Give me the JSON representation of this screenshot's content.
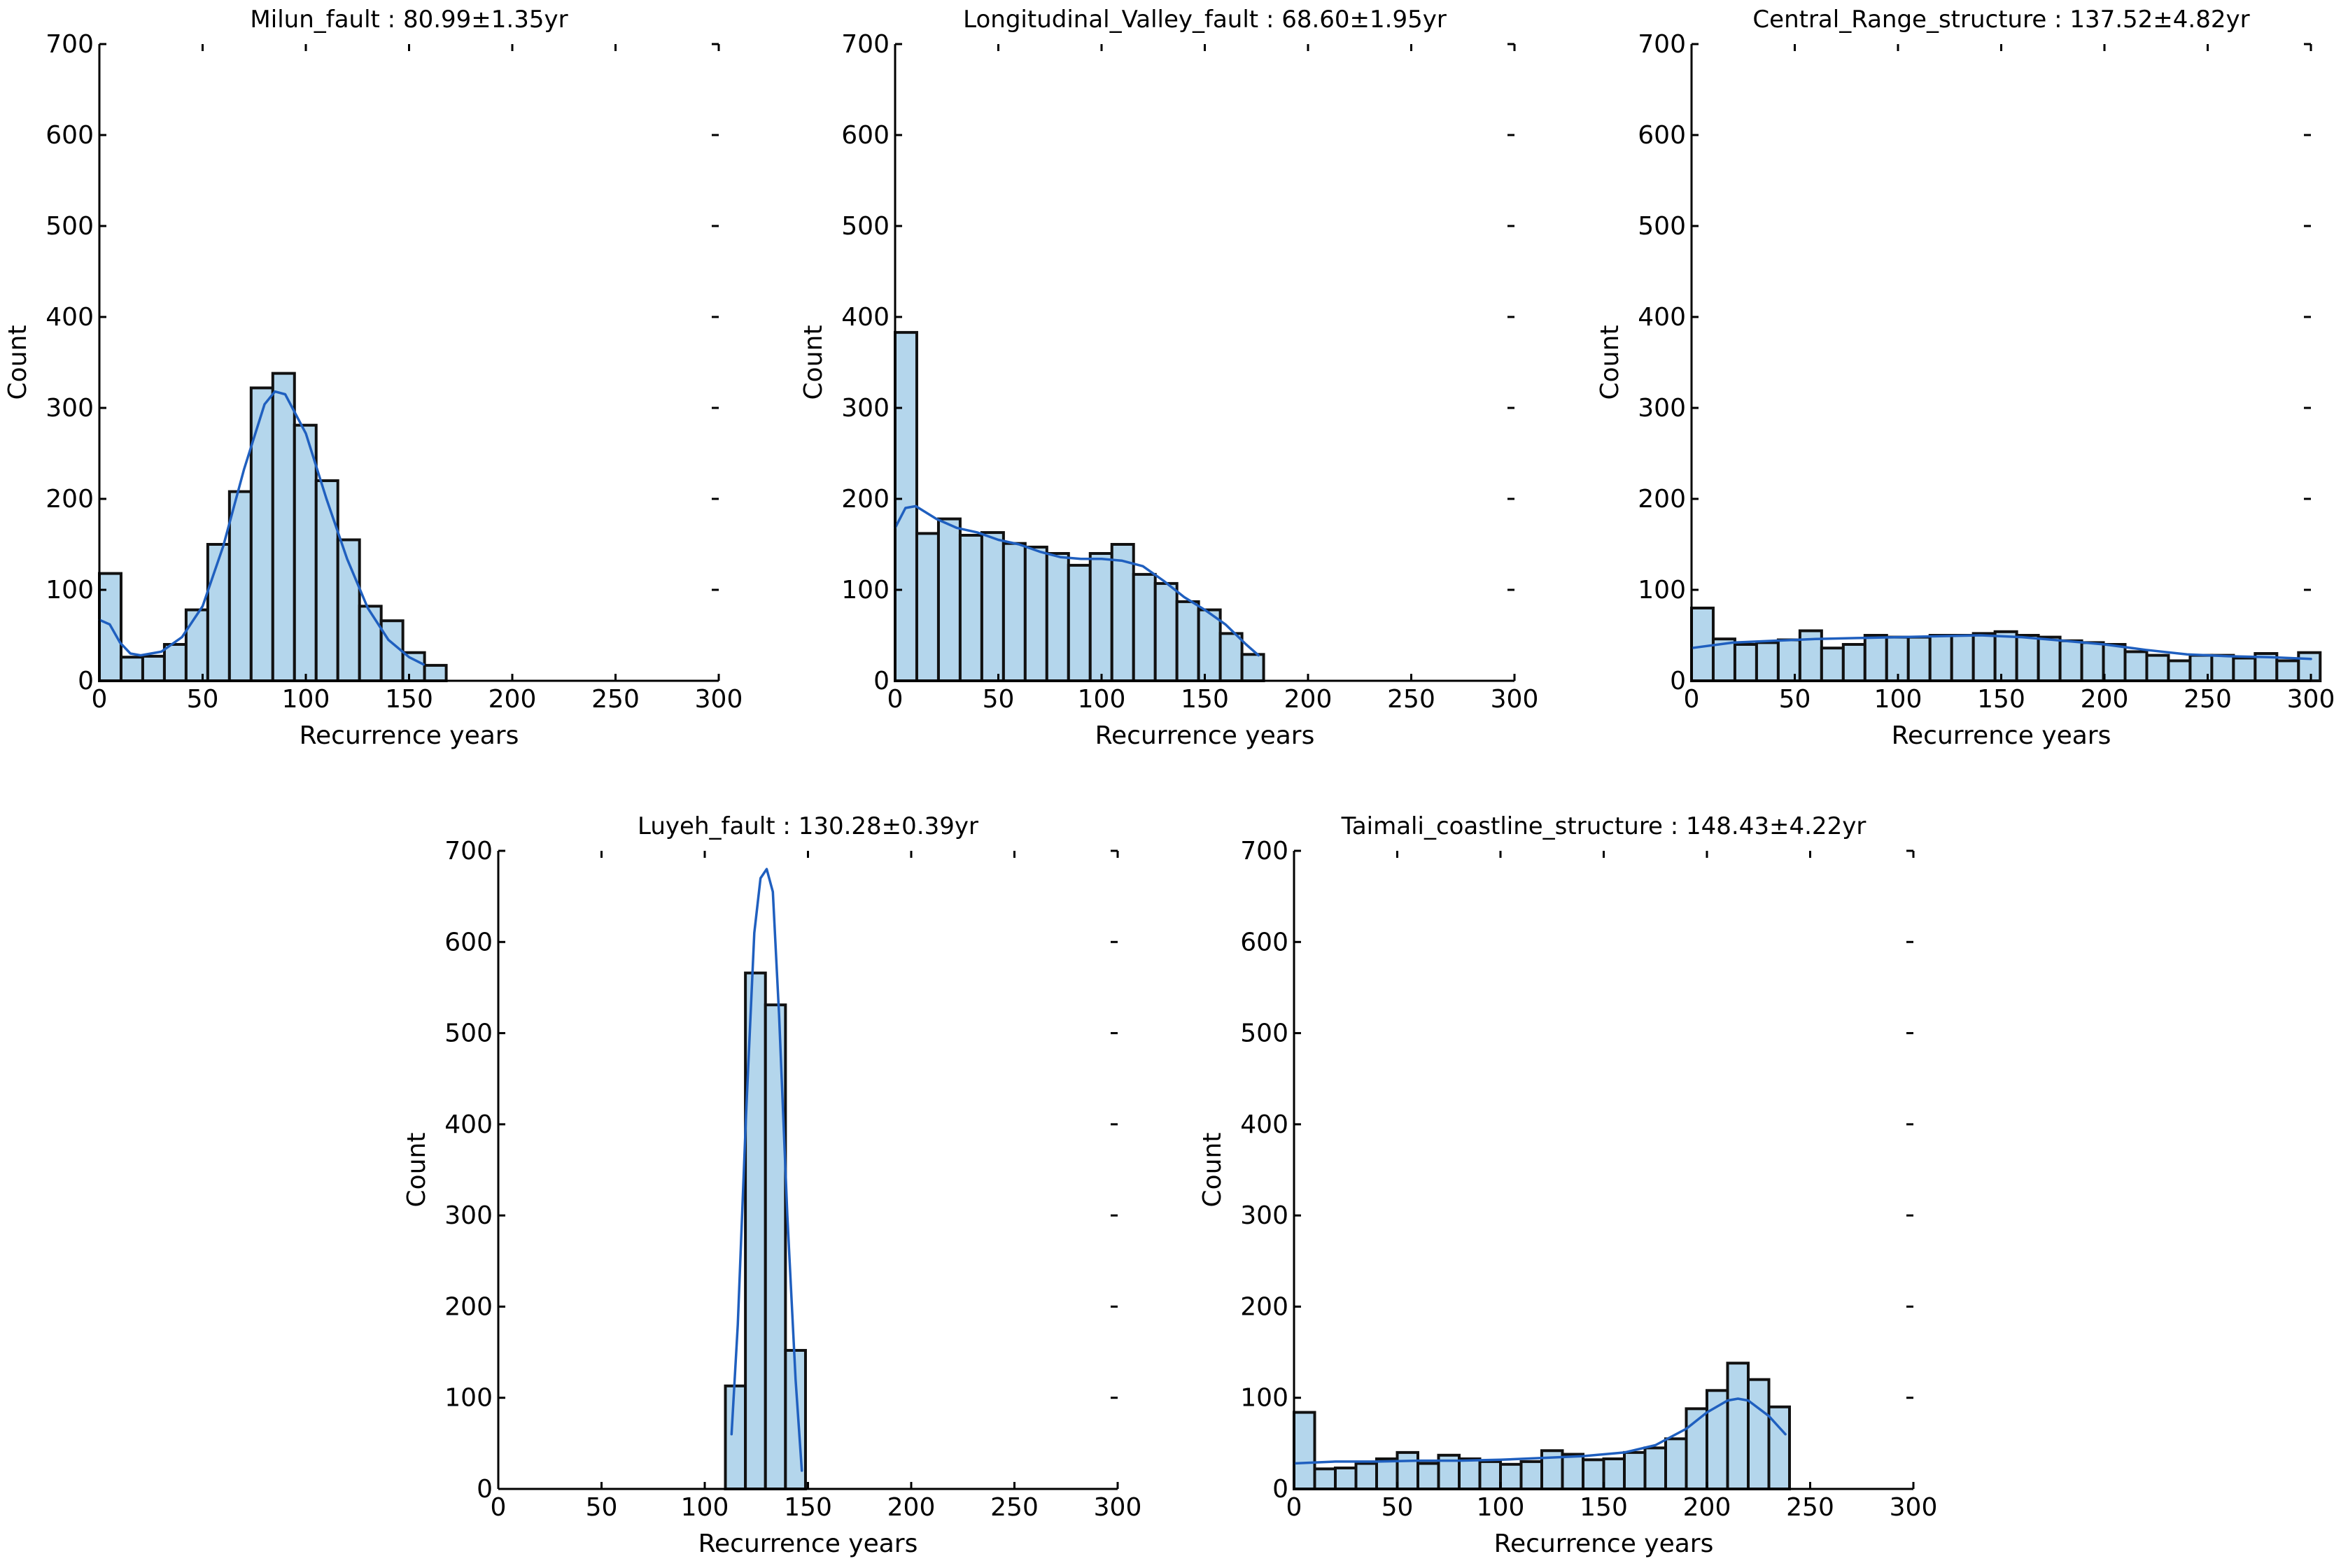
{
  "colors": {
    "bar_fill": "#b4d6ec",
    "bar_stroke": "#111111",
    "kde_line": "#1f5fbf",
    "axis": "#000000"
  },
  "chart_data": [
    {
      "type": "bar",
      "title": "Milun_fault : 80.99±1.35yr",
      "xlabel": "Recurrence years",
      "ylabel": "Count",
      "xlim": [
        0,
        300
      ],
      "ylim": [
        0,
        700
      ],
      "xticks": [
        0,
        50,
        100,
        150,
        200,
        250,
        300
      ],
      "yticks": [
        0,
        100,
        200,
        300,
        400,
        500,
        600,
        700
      ],
      "bin_width": 10.5,
      "bin_start": 0,
      "values": [
        118,
        26,
        27,
        40,
        78,
        150,
        208,
        322,
        338,
        281,
        220,
        155,
        82,
        66,
        31,
        17
      ],
      "kde": [
        [
          0,
          67
        ],
        [
          5,
          62
        ],
        [
          10,
          42
        ],
        [
          15,
          30
        ],
        [
          20,
          28
        ],
        [
          30,
          32
        ],
        [
          40,
          48
        ],
        [
          50,
          82
        ],
        [
          60,
          148
        ],
        [
          70,
          232
        ],
        [
          80,
          304
        ],
        [
          85,
          318
        ],
        [
          90,
          315
        ],
        [
          100,
          272
        ],
        [
          110,
          200
        ],
        [
          120,
          134
        ],
        [
          130,
          80
        ],
        [
          140,
          45
        ],
        [
          150,
          26
        ],
        [
          157,
          18
        ]
      ]
    },
    {
      "type": "bar",
      "title": "Longitudinal_Valley_fault : 68.60±1.95yr",
      "xlabel": "Recurrence years",
      "ylabel": "Count",
      "xlim": [
        0,
        300
      ],
      "ylim": [
        0,
        700
      ],
      "xticks": [
        0,
        50,
        100,
        150,
        200,
        250,
        300
      ],
      "yticks": [
        0,
        100,
        200,
        300,
        400,
        500,
        600,
        700
      ],
      "bin_width": 10.5,
      "bin_start": 0,
      "values": [
        383,
        162,
        178,
        160,
        163,
        151,
        147,
        140,
        127,
        140,
        150,
        117,
        107,
        87,
        78,
        52,
        29
      ],
      "kde": [
        [
          0,
          168
        ],
        [
          5,
          190
        ],
        [
          10,
          192
        ],
        [
          20,
          178
        ],
        [
          30,
          168
        ],
        [
          40,
          163
        ],
        [
          50,
          155
        ],
        [
          60,
          150
        ],
        [
          70,
          142
        ],
        [
          80,
          136
        ],
        [
          90,
          134
        ],
        [
          100,
          134
        ],
        [
          110,
          132
        ],
        [
          120,
          126
        ],
        [
          130,
          110
        ],
        [
          140,
          92
        ],
        [
          150,
          78
        ],
        [
          160,
          62
        ],
        [
          170,
          40
        ],
        [
          176,
          28
        ]
      ]
    },
    {
      "type": "bar",
      "title": "Central_Range_structure : 137.52±4.82yr",
      "xlabel": "Recurrence years",
      "ylabel": "Count",
      "xlim": [
        0,
        300
      ],
      "ylim": [
        0,
        700
      ],
      "xticks": [
        0,
        50,
        100,
        150,
        200,
        250,
        300
      ],
      "yticks": [
        0,
        100,
        200,
        300,
        400,
        500,
        600,
        700
      ],
      "bin_width": 10.5,
      "bin_start": 0,
      "values": [
        80,
        46,
        40,
        42,
        45,
        55,
        36,
        40,
        50,
        48,
        48,
        50,
        50,
        52,
        54,
        50,
        48,
        44,
        42,
        40,
        32,
        28,
        22,
        28,
        28,
        25,
        30,
        22,
        31
      ],
      "kde": [
        [
          0,
          36
        ],
        [
          20,
          42
        ],
        [
          40,
          44
        ],
        [
          60,
          46
        ],
        [
          80,
          47
        ],
        [
          100,
          48
        ],
        [
          120,
          49
        ],
        [
          140,
          50
        ],
        [
          160,
          48
        ],
        [
          180,
          44
        ],
        [
          200,
          40
        ],
        [
          220,
          34
        ],
        [
          240,
          29
        ],
        [
          260,
          27
        ],
        [
          280,
          26
        ],
        [
          300,
          24
        ]
      ]
    },
    {
      "type": "bar",
      "title": "Luyeh_fault : 130.28±0.39yr",
      "xlabel": "Recurrence years",
      "ylabel": "Count",
      "xlim": [
        0,
        300
      ],
      "ylim": [
        0,
        700
      ],
      "xticks": [
        0,
        50,
        100,
        150,
        200,
        250,
        300
      ],
      "yticks": [
        0,
        100,
        200,
        300,
        400,
        500,
        600,
        700
      ],
      "bin_width": 9.7,
      "bin_start": 110,
      "values": [
        113,
        566,
        531,
        152
      ],
      "kde": [
        [
          113,
          60
        ],
        [
          116,
          180
        ],
        [
          120,
          410
        ],
        [
          124,
          610
        ],
        [
          127,
          670
        ],
        [
          130,
          680
        ],
        [
          133,
          655
        ],
        [
          136,
          520
        ],
        [
          140,
          300
        ],
        [
          144,
          120
        ],
        [
          147,
          20
        ]
      ]
    },
    {
      "type": "bar",
      "title": "Taimali_coastline_structure : 148.43±4.22yr",
      "xlabel": "Recurrence years",
      "ylabel": "Count",
      "xlim": [
        0,
        300
      ],
      "ylim": [
        0,
        700
      ],
      "xticks": [
        0,
        50,
        100,
        150,
        200,
        250,
        300
      ],
      "yticks": [
        0,
        100,
        200,
        300,
        400,
        500,
        600,
        700
      ],
      "bin_width": 10,
      "bin_start": 0,
      "values": [
        84,
        22,
        23,
        28,
        33,
        40,
        28,
        37,
        33,
        30,
        27,
        30,
        42,
        38,
        32,
        33,
        40,
        45,
        55,
        88,
        108,
        138,
        120,
        90
      ],
      "kde": [
        [
          0,
          28
        ],
        [
          20,
          30
        ],
        [
          40,
          30
        ],
        [
          60,
          31
        ],
        [
          80,
          31
        ],
        [
          100,
          32
        ],
        [
          120,
          34
        ],
        [
          140,
          36
        ],
        [
          160,
          40
        ],
        [
          175,
          48
        ],
        [
          190,
          66
        ],
        [
          200,
          84
        ],
        [
          210,
          97
        ],
        [
          215,
          99
        ],
        [
          220,
          97
        ],
        [
          230,
          80
        ],
        [
          238,
          60
        ]
      ]
    }
  ]
}
